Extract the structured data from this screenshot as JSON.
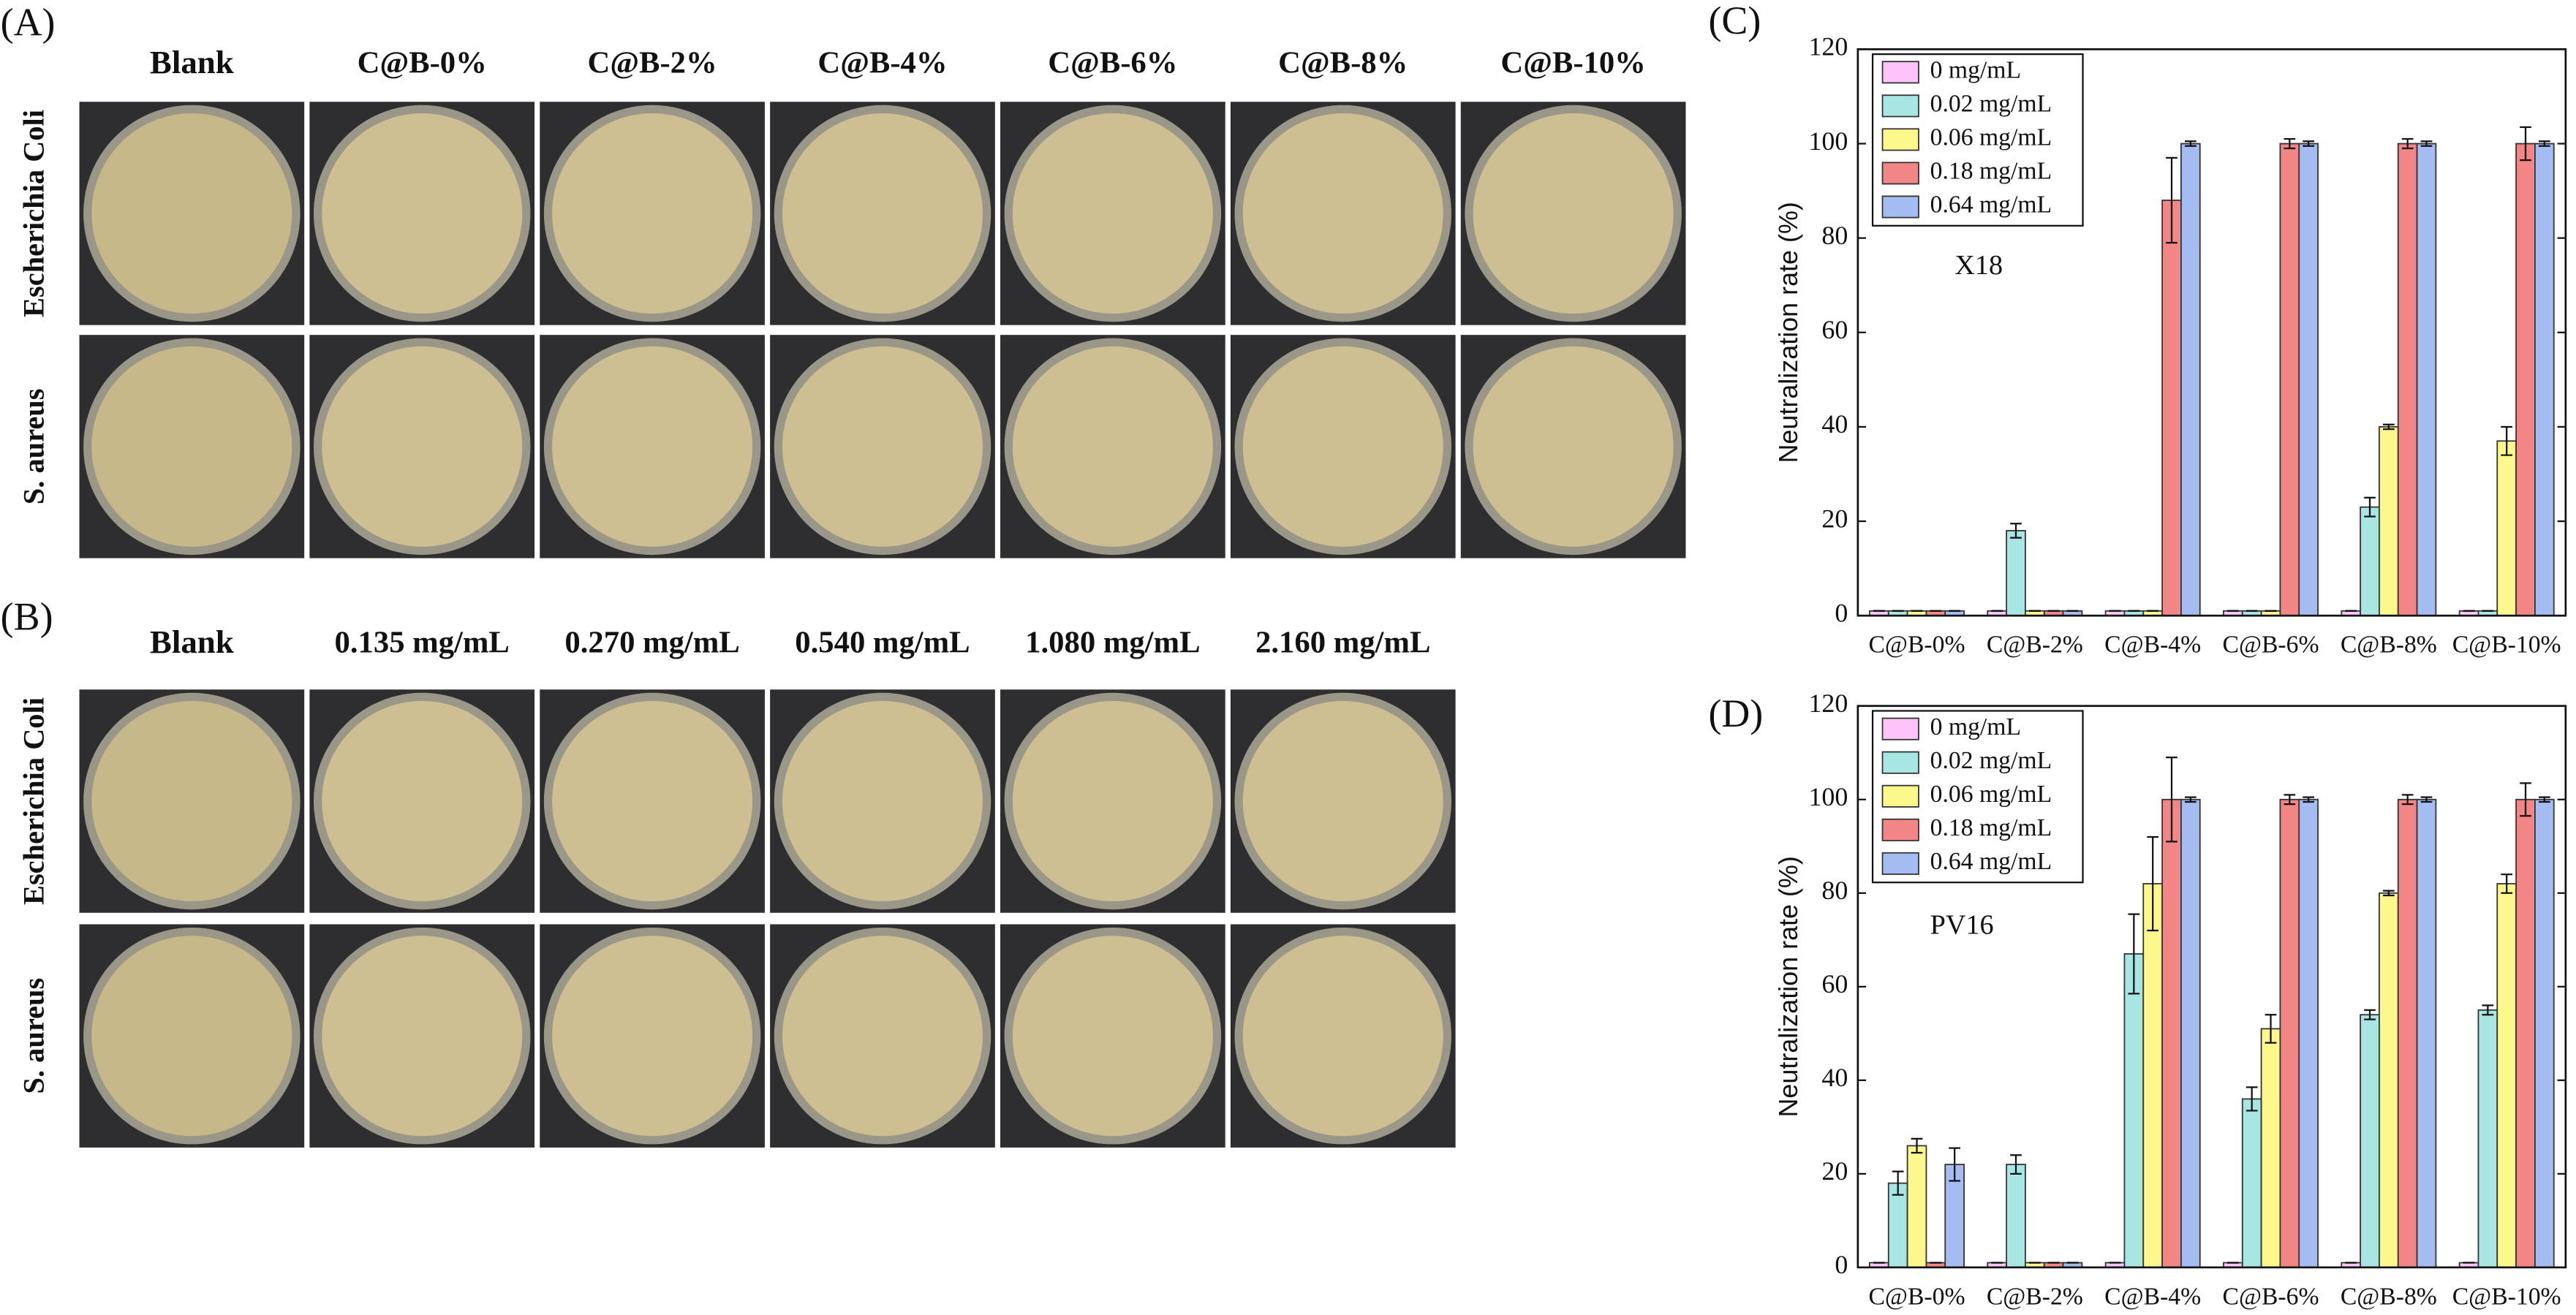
{
  "panels": {
    "A": {
      "label": "(A)",
      "columns": [
        "Blank",
        "C@B-0%",
        "C@B-2%",
        "C@B-4%",
        "C@B-6%",
        "C@B-8%",
        "C@B-10%"
      ],
      "rows": [
        "Escherichia Coli",
        "S. aureus"
      ]
    },
    "B": {
      "label": "(B)",
      "columns": [
        "Blank",
        "0.135 mg/mL",
        "0.270 mg/mL",
        "0.540 mg/mL",
        "1.080 mg/mL",
        "2.160 mg/mL"
      ],
      "rows": [
        "Escherichia Coli",
        "S. aureus"
      ]
    }
  },
  "chart_data": [
    {
      "type": "bar",
      "label": "(C)",
      "annotation": "X18",
      "y_label": "Neutralization rate (%)",
      "categories": [
        "C@B-0%",
        "C@B-2%",
        "C@B-4%",
        "C@B-6%",
        "C@B-8%",
        "C@B-10%"
      ],
      "series": [
        {
          "name": "0 mg/mL",
          "color": "#fcc4f8",
          "values": [
            1,
            1,
            1,
            1,
            1,
            1
          ],
          "errors": [
            0,
            0,
            0,
            0,
            0,
            0
          ]
        },
        {
          "name": "0.02 mg/mL",
          "color": "#a8e6e4",
          "values": [
            1,
            18,
            1,
            1,
            23,
            1
          ],
          "errors": [
            0,
            1.5,
            0,
            0,
            2,
            0
          ]
        },
        {
          "name": "0.06 mg/mL",
          "color": "#fcf88c",
          "values": [
            1,
            1,
            1,
            1,
            40,
            37
          ],
          "errors": [
            0,
            0,
            0,
            0,
            0.5,
            3
          ]
        },
        {
          "name": "0.18 mg/mL",
          "color": "#f28686",
          "values": [
            1,
            1,
            88,
            100,
            100,
            100
          ],
          "errors": [
            0,
            0,
            9,
            1,
            1,
            3.5
          ]
        },
        {
          "name": "0.64 mg/mL",
          "color": "#a4bcf2",
          "values": [
            1,
            1,
            100,
            100,
            100,
            100
          ],
          "errors": [
            0,
            0,
            0.5,
            0.5,
            0.5,
            0.5
          ]
        }
      ],
      "ylim": [
        0,
        120
      ],
      "yticks": [
        0,
        20,
        40,
        60,
        80,
        100,
        120
      ],
      "legend": "upper left"
    },
    {
      "type": "bar",
      "label": "(D)",
      "annotation": "PV16",
      "y_label": "Neutralization rate (%)",
      "categories": [
        "C@B-0%",
        "C@B-2%",
        "C@B-4%",
        "C@B-6%",
        "C@B-8%",
        "C@B-10%"
      ],
      "series": [
        {
          "name": "0 mg/mL",
          "color": "#fcc4f8",
          "values": [
            1,
            1,
            1,
            1,
            1,
            1
          ],
          "errors": [
            0,
            0,
            0,
            0,
            0,
            0
          ]
        },
        {
          "name": "0.02 mg/mL",
          "color": "#a8e6e4",
          "values": [
            18,
            22,
            67,
            36,
            54,
            55
          ],
          "errors": [
            2.5,
            2,
            8.5,
            2.5,
            1,
            1
          ]
        },
        {
          "name": "0.06 mg/mL",
          "color": "#fcf88c",
          "values": [
            26,
            1,
            82,
            51,
            80,
            82
          ],
          "errors": [
            1.5,
            0,
            10,
            3,
            0.5,
            2
          ]
        },
        {
          "name": "0.18 mg/mL",
          "color": "#f28686",
          "values": [
            1,
            1,
            100,
            100,
            100,
            100
          ],
          "errors": [
            0,
            0,
            9,
            1,
            1,
            3.5
          ]
        },
        {
          "name": "0.64 mg/mL",
          "color": "#a4bcf2",
          "values": [
            22,
            1,
            100,
            100,
            100,
            100
          ],
          "errors": [
            3.5,
            0,
            0.5,
            0.5,
            0.5,
            0.5
          ]
        }
      ],
      "ylim": [
        0,
        120
      ],
      "yticks": [
        0,
        20,
        40,
        60,
        80,
        100,
        120
      ],
      "legend": "upper left"
    }
  ]
}
